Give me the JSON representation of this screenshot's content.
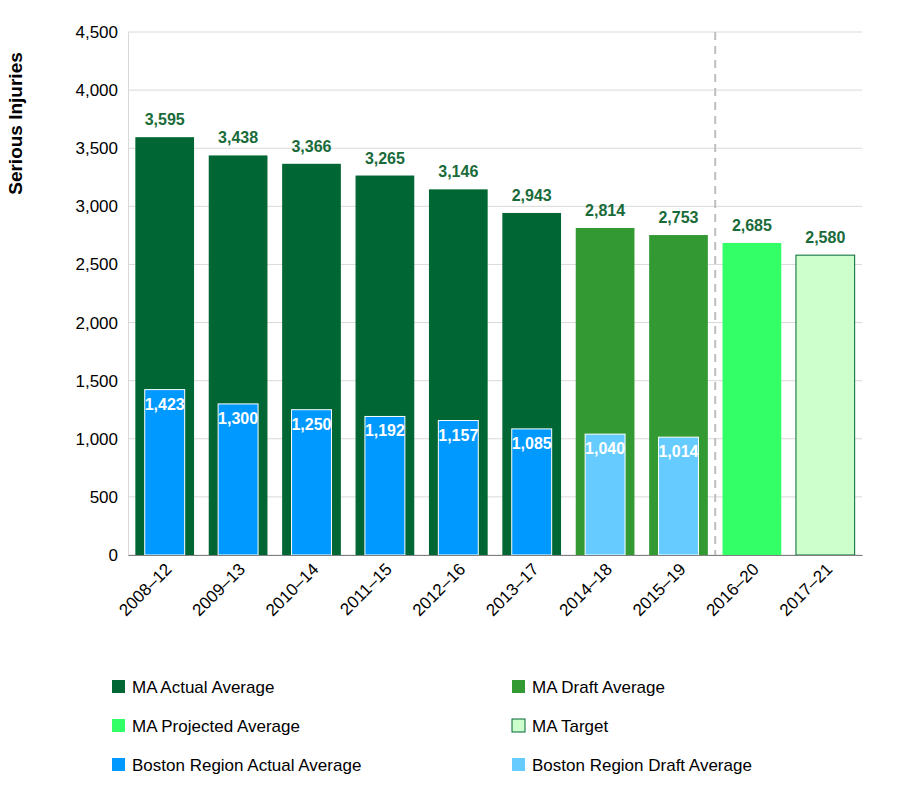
{
  "chart_data": {
    "type": "bar",
    "y_label": "Serious Injuries",
    "categories": [
      "2008–12",
      "2009–13",
      "2010–14",
      "2011–15",
      "2012–16",
      "2013–17",
      "2014–18",
      "2015–19",
      "2016–20",
      "2017–21"
    ],
    "series": [
      {
        "name": "MA Actual Average",
        "color": "#006633",
        "values": [
          3595,
          3438,
          3366,
          3265,
          3146,
          2943,
          null,
          null,
          null,
          null
        ],
        "value_labels": [
          "3,595",
          "3,438",
          "3,366",
          "3,265",
          "3,146",
          "2,943",
          null,
          null,
          null,
          null
        ]
      },
      {
        "name": "MA Draft Average",
        "color": "#339933",
        "values": [
          null,
          null,
          null,
          null,
          null,
          null,
          2814,
          2753,
          null,
          null
        ],
        "value_labels": [
          null,
          null,
          null,
          null,
          null,
          null,
          "2,814",
          "2,753",
          null,
          null
        ]
      },
      {
        "name": "MA Projected Average",
        "color": "#33ff66",
        "values": [
          null,
          null,
          null,
          null,
          null,
          null,
          null,
          null,
          2685,
          null
        ],
        "value_labels": [
          null,
          null,
          null,
          null,
          null,
          null,
          null,
          null,
          "2,685",
          null
        ]
      },
      {
        "name": "MA Target",
        "color": "#ccffcc",
        "values": [
          null,
          null,
          null,
          null,
          null,
          null,
          null,
          null,
          null,
          2580
        ],
        "value_labels": [
          null,
          null,
          null,
          null,
          null,
          null,
          null,
          null,
          null,
          "2,580"
        ]
      },
      {
        "name": "Boston Region Actual Average",
        "color": "#0099ff",
        "values": [
          1423,
          1300,
          1250,
          1192,
          1157,
          1085,
          null,
          null,
          null,
          null
        ],
        "value_labels": [
          "1,423",
          "1,300",
          "1,250",
          "1,192",
          "1,157",
          "1,085",
          null,
          null,
          null,
          null
        ]
      },
      {
        "name": "Boston Region Draft Average",
        "color": "#66ccff",
        "values": [
          null,
          null,
          null,
          null,
          null,
          null,
          1040,
          1014,
          null,
          null
        ],
        "value_labels": [
          null,
          null,
          null,
          null,
          null,
          null,
          "1,040",
          "1,014",
          null,
          null
        ]
      }
    ],
    "ylim": [
      0,
      4500
    ],
    "yticks": [
      0,
      500,
      {
        "value": 1000,
        "label": "1,000"
      },
      {
        "value": 1500,
        "label": "1,500"
      },
      {
        "value": 2000,
        "label": "2,000"
      },
      {
        "value": 2500,
        "label": "2,500"
      },
      {
        "value": 3000,
        "label": "3,000"
      },
      {
        "value": 3500,
        "label": "3,500"
      },
      {
        "value": 4000,
        "label": "4,000"
      },
      {
        "value": 4500,
        "label": "4,500"
      }
    ],
    "grid": true,
    "data_labels": true,
    "legend": "bottom"
  }
}
